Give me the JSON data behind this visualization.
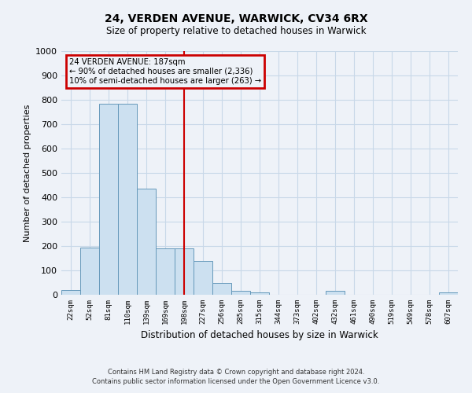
{
  "title": "24, VERDEN AVENUE, WARWICK, CV34 6RX",
  "subtitle": "Size of property relative to detached houses in Warwick",
  "xlabel": "Distribution of detached houses by size in Warwick",
  "ylabel": "Number of detached properties",
  "bar_labels": [
    "22sqm",
    "52sqm",
    "81sqm",
    "110sqm",
    "139sqm",
    "169sqm",
    "198sqm",
    "227sqm",
    "256sqm",
    "285sqm",
    "315sqm",
    "344sqm",
    "373sqm",
    "402sqm",
    "432sqm",
    "461sqm",
    "490sqm",
    "519sqm",
    "549sqm",
    "578sqm",
    "607sqm"
  ],
  "bar_heights": [
    20,
    195,
    785,
    785,
    435,
    190,
    190,
    140,
    50,
    15,
    10,
    0,
    0,
    0,
    15,
    0,
    0,
    0,
    0,
    0,
    10
  ],
  "bar_color": "#cce0f0",
  "bar_edge_color": "#6699bb",
  "vline_x": 6,
  "vline_color": "#cc0000",
  "ylim": [
    0,
    1000
  ],
  "yticks": [
    0,
    100,
    200,
    300,
    400,
    500,
    600,
    700,
    800,
    900,
    1000
  ],
  "annotation_title": "24 VERDEN AVENUE: 187sqm",
  "annotation_line1": "← 90% of detached houses are smaller (2,336)",
  "annotation_line2": "10% of semi-detached houses are larger (263) →",
  "annotation_box_color": "#cc0000",
  "grid_color": "#c8d8e8",
  "background_color": "#eef2f8",
  "footer_line1": "Contains HM Land Registry data © Crown copyright and database right 2024.",
  "footer_line2": "Contains public sector information licensed under the Open Government Licence v3.0."
}
